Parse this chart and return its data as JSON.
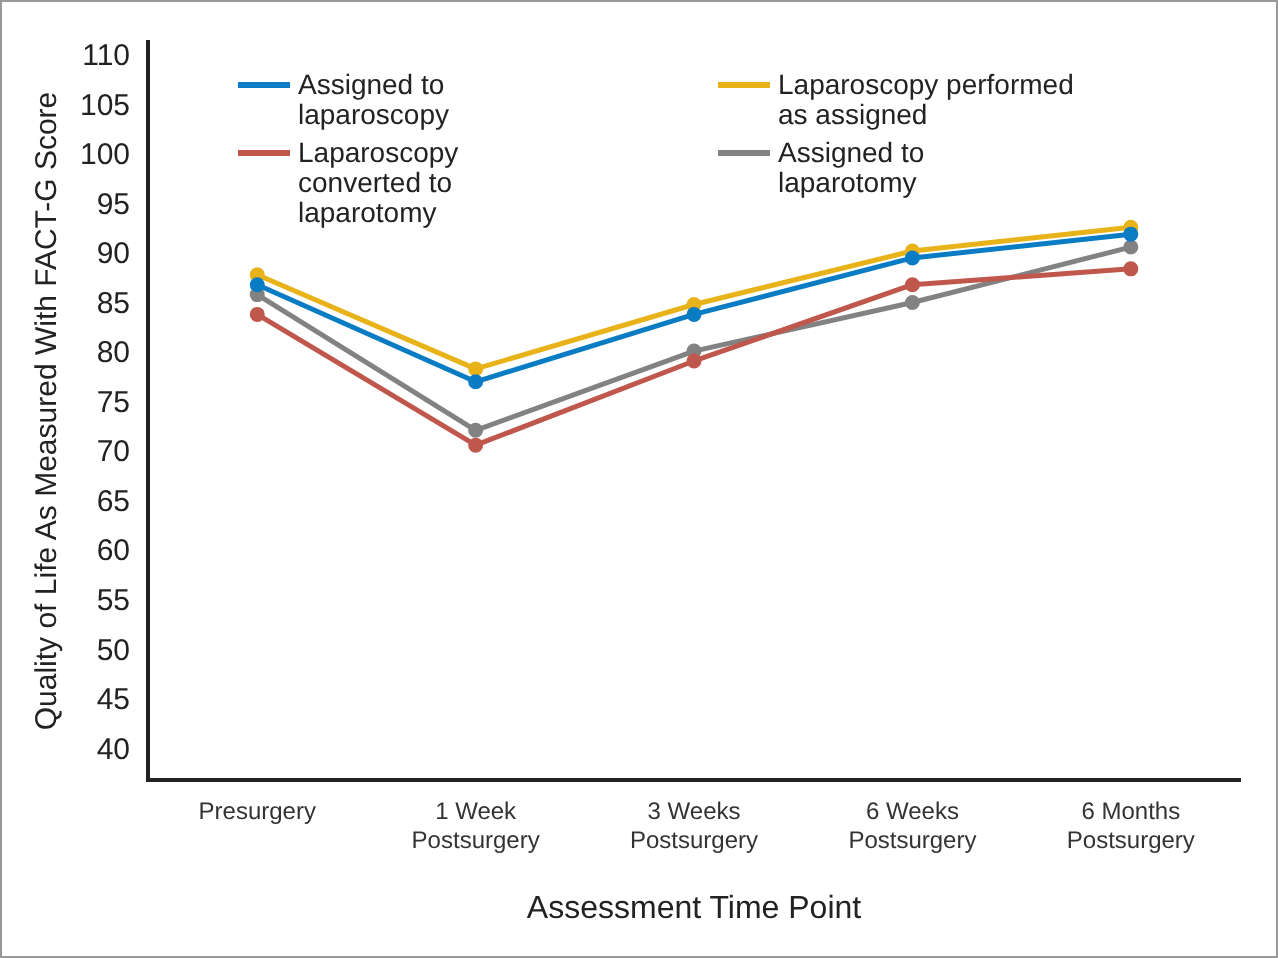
{
  "chart_data": {
    "type": "line",
    "xlabel": "Assessment Time Point",
    "ylabel": "Quality of Life As Measured With FACT-G Score",
    "categories": [
      "Presurgery",
      "1 Week Postsurgery",
      "3 Weeks Postsurgery",
      "6 Weeks Postsurgery",
      "6 Months Postsurgery"
    ],
    "series": [
      {
        "name": "Assigned to laparoscopy",
        "color": "#0a7cc4",
        "values": [
          87,
          77.2,
          84,
          89.7,
          92.1
        ]
      },
      {
        "name": "Laparoscopy converted to laparotomy",
        "color": "#c0574d",
        "values": [
          84,
          70.8,
          79.3,
          87,
          88.6
        ]
      },
      {
        "name": "Laparoscopy performed as assigned",
        "color": "#e8b319",
        "values": [
          88,
          78.5,
          85,
          90.4,
          92.8
        ]
      },
      {
        "name": "Assigned to laparotomy",
        "color": "#828282",
        "values": [
          86,
          72.3,
          80.3,
          85.2,
          90.8
        ]
      }
    ],
    "ylim": [
      37,
      111.5
    ],
    "yticks": [
      40,
      45,
      50,
      55,
      60,
      65,
      70,
      75,
      80,
      85,
      90,
      95,
      100,
      105,
      110
    ],
    "grid": false,
    "legend": "top left",
    "marker": "circle",
    "line_style": "solid"
  }
}
